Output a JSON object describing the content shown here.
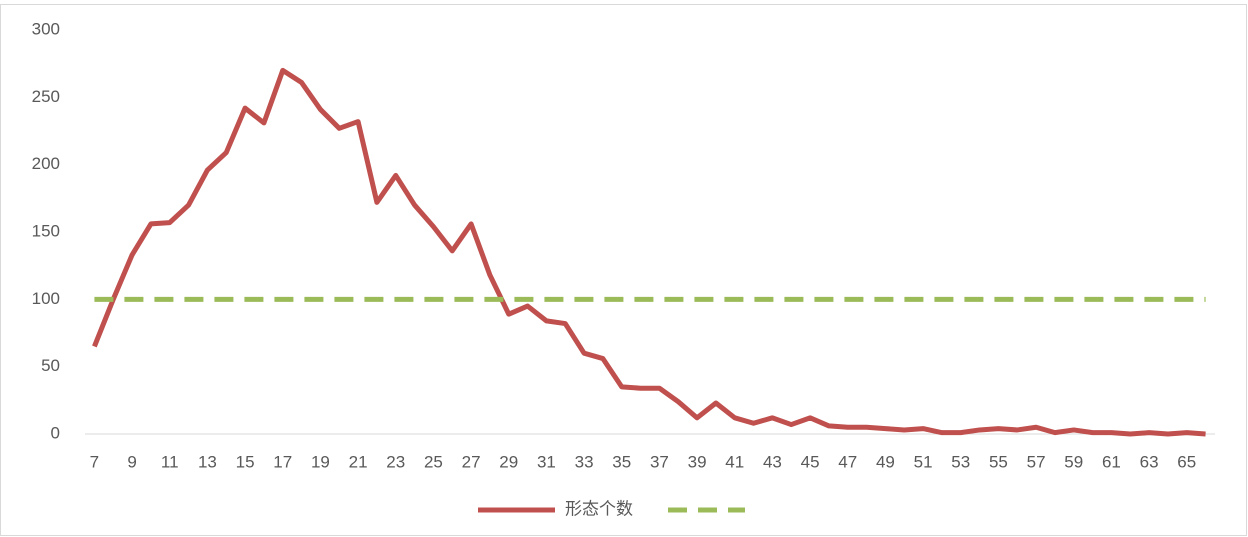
{
  "chart_data": {
    "type": "line",
    "x": [
      7,
      8,
      9,
      10,
      11,
      12,
      13,
      14,
      15,
      16,
      17,
      18,
      19,
      20,
      21,
      22,
      23,
      24,
      25,
      26,
      27,
      28,
      29,
      30,
      31,
      32,
      33,
      34,
      35,
      36,
      37,
      38,
      39,
      40,
      41,
      42,
      43,
      44,
      45,
      46,
      47,
      48,
      49,
      50,
      51,
      52,
      53,
      54,
      55,
      56,
      57,
      58,
      59,
      60,
      61,
      62,
      63,
      64,
      65,
      66
    ],
    "series": [
      {
        "name": "形态个数",
        "color": "#c0504d",
        "dashed": false,
        "values": [
          65,
          100,
          133,
          156,
          157,
          170,
          196,
          209,
          242,
          231,
          270,
          261,
          241,
          227,
          232,
          172,
          192,
          170,
          154,
          136,
          156,
          118,
          89,
          95,
          84,
          82,
          60,
          56,
          35,
          34,
          34,
          24,
          12,
          23,
          12,
          8,
          12,
          7,
          12,
          6,
          5,
          5,
          4,
          3,
          4,
          1,
          1,
          3,
          4,
          3,
          5,
          1,
          3,
          1,
          1,
          0,
          1,
          0,
          1,
          0
        ]
      },
      {
        "color": "#9bbb59",
        "dashed": true,
        "values": [
          100,
          100,
          100,
          100,
          100,
          100,
          100,
          100,
          100,
          100,
          100,
          100,
          100,
          100,
          100,
          100,
          100,
          100,
          100,
          100,
          100,
          100,
          100,
          100,
          100,
          100,
          100,
          100,
          100,
          100,
          100,
          100,
          100,
          100,
          100,
          100,
          100,
          100,
          100,
          100,
          100,
          100,
          100,
          100,
          100,
          100,
          100,
          100,
          100,
          100,
          100,
          100,
          100,
          100,
          100,
          100,
          100,
          100,
          100,
          100
        ]
      }
    ],
    "xlim": [
      6.5,
      66.5
    ],
    "xticks": [
      7,
      9,
      11,
      13,
      15,
      17,
      19,
      21,
      23,
      25,
      27,
      29,
      31,
      33,
      35,
      37,
      39,
      41,
      43,
      45,
      47,
      49,
      51,
      53,
      55,
      57,
      59,
      61,
      63,
      65
    ],
    "ylim": [
      0,
      300
    ],
    "yticks": [
      0,
      50,
      100,
      150,
      200,
      250,
      300
    ],
    "grid": false,
    "legend": "bottom"
  }
}
